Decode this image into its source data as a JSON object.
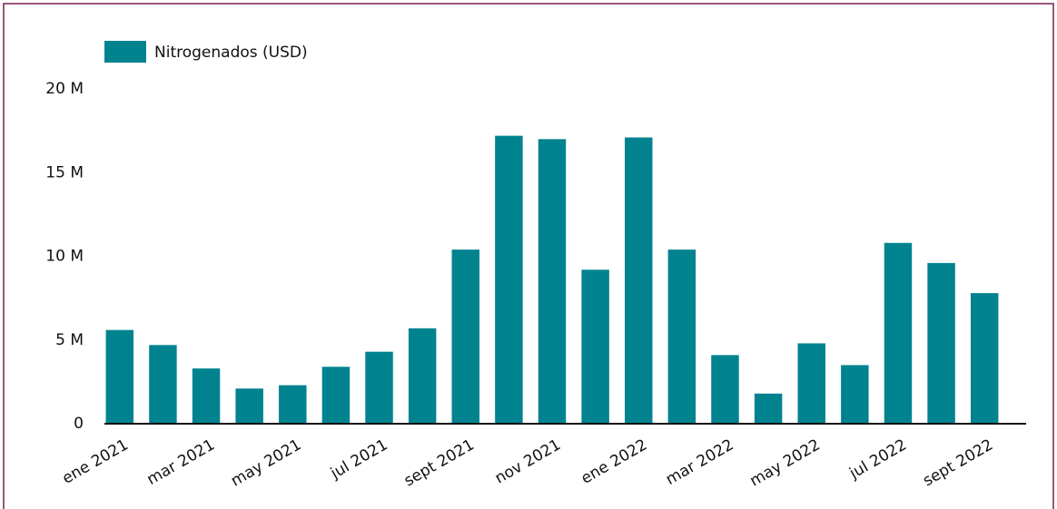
{
  "chart_data": {
    "type": "bar",
    "categories": [
      "ene 2021",
      null,
      "mar 2021",
      null,
      "may 2021",
      null,
      "jul 2021",
      null,
      "sept 2021",
      null,
      "nov 2021",
      null,
      "ene 2022",
      null,
      "mar 2022",
      null,
      "may 2022",
      null,
      "jul 2022",
      null,
      "sept 2022"
    ],
    "series": [
      {
        "name": "Nitrogenados (USD)",
        "color": "#00838f",
        "values": [
          5600000,
          4700000,
          3300000,
          2100000,
          2300000,
          3400000,
          4300000,
          5700000,
          10400000,
          17200000,
          17000000,
          9200000,
          17100000,
          10400000,
          4100000,
          1800000,
          4800000,
          3500000,
          10800000,
          9600000,
          7800000
        ]
      }
    ],
    "ylim": [
      0,
      20000000
    ],
    "yticks": [
      0,
      {
        "value": 5000000,
        "label": "5 M"
      },
      {
        "value": 10000000,
        "label": "10 M"
      },
      {
        "value": 15000000,
        "label": "15 M"
      },
      {
        "value": 20000000,
        "label": "20 M"
      }
    ],
    "legend": "top-left"
  }
}
